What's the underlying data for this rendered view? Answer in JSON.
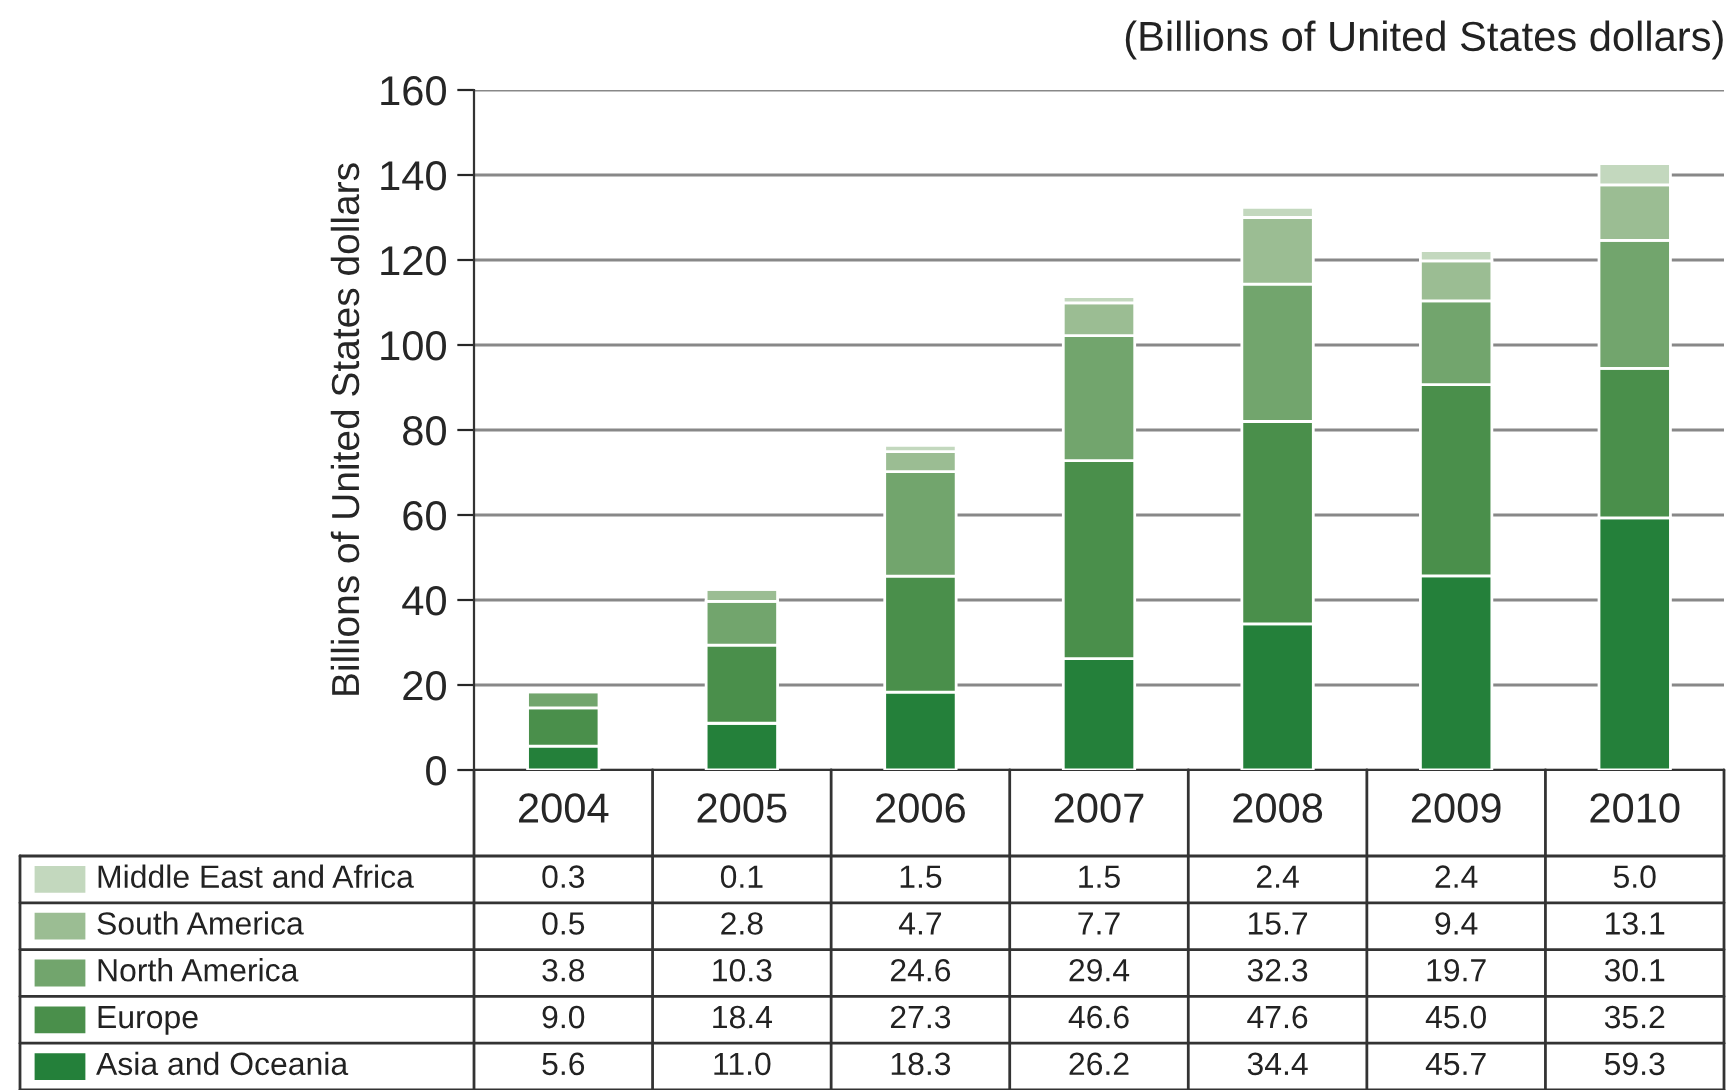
{
  "chart_data": {
    "type": "bar",
    "stacked": true,
    "subtitle": "(Billions of United States dollars)",
    "ylabel": "Billions of United States dollars",
    "categories": [
      "2004",
      "2005",
      "2006",
      "2007",
      "2008",
      "2009",
      "2010"
    ],
    "series": [
      {
        "name": "Asia and Oceania",
        "color": "#24803a",
        "values": [
          5.6,
          11.0,
          18.3,
          26.2,
          34.4,
          45.7,
          59.3
        ],
        "value_labels": [
          "5.6",
          "11.0",
          "18.3",
          "26.2",
          "34.4",
          "45.7",
          "59.3"
        ]
      },
      {
        "name": "Europe",
        "color": "#4a8f4b",
        "values": [
          9.0,
          18.4,
          27.3,
          46.6,
          47.6,
          45.0,
          35.2
        ],
        "value_labels": [
          "9.0",
          "18.4",
          "27.3",
          "46.6",
          "47.6",
          "45.0",
          "35.2"
        ]
      },
      {
        "name": "North America",
        "color": "#72a56d",
        "values": [
          3.8,
          10.3,
          24.6,
          29.4,
          32.3,
          19.7,
          30.1
        ],
        "value_labels": [
          "3.8",
          "10.3",
          "24.6",
          "29.4",
          "32.3",
          "19.7",
          "30.1"
        ]
      },
      {
        "name": "South America",
        "color": "#9bbd93",
        "values": [
          0.5,
          2.8,
          4.7,
          7.7,
          15.7,
          9.4,
          13.1
        ],
        "value_labels": [
          "0.5",
          "2.8",
          "4.7",
          "7.7",
          "15.7",
          "9.4",
          "13.1"
        ]
      },
      {
        "name": "Middle East and Africa",
        "color": "#c3d8be",
        "values": [
          0.3,
          0.1,
          1.5,
          1.5,
          2.4,
          2.4,
          5.0
        ],
        "value_labels": [
          "0.3",
          "0.1",
          "1.5",
          "1.5",
          "2.4",
          "2.4",
          "5.0"
        ]
      }
    ],
    "ylim": [
      0,
      160
    ],
    "yticks": [
      0,
      20,
      40,
      60,
      80,
      100,
      120,
      140,
      160
    ],
    "grid": "y",
    "legend": "bottom"
  }
}
